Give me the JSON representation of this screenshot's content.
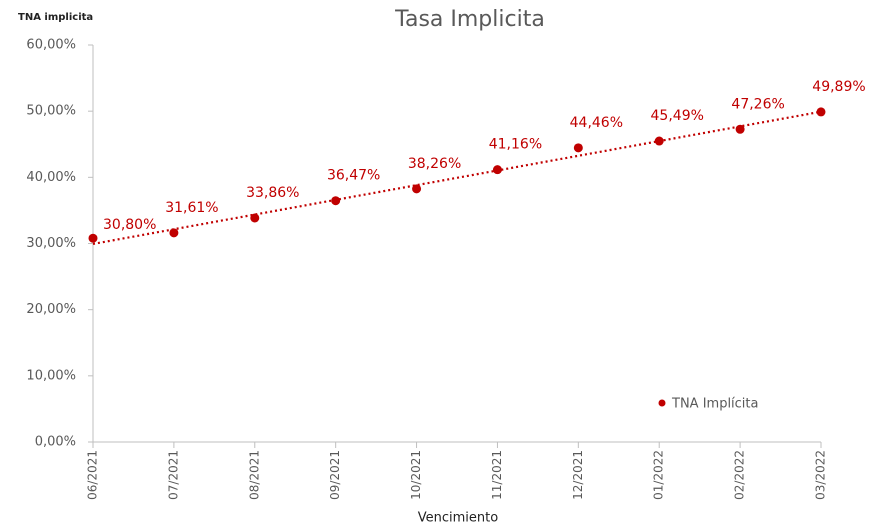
{
  "chart_data": {
    "type": "scatter",
    "title": "Tasa Implicita",
    "ylabel": "TNA implicita",
    "xlabel": "Vencimiento",
    "categories": [
      "06/2021",
      "07/2021",
      "08/2021",
      "09/2021",
      "10/2021",
      "11/2021",
      "12/2021",
      "01/2022",
      "02/2022",
      "03/2022"
    ],
    "series": [
      {
        "name": "TNA Implícita",
        "color": "#c00000",
        "values": [
          30.8,
          31.61,
          33.86,
          36.47,
          38.26,
          41.16,
          44.46,
          45.49,
          47.26,
          49.89
        ],
        "value_labels": [
          "30,80%",
          "31,61%",
          "33,86%",
          "36,47%",
          "38,26%",
          "41,16%",
          "44,46%",
          "45,49%",
          "47,26%",
          "49,89%"
        ]
      }
    ],
    "ylim": [
      0,
      60
    ],
    "yticks": [
      {
        "value": 0,
        "label": "0,00%"
      },
      {
        "value": 10,
        "label": "10,00%"
      },
      {
        "value": 20,
        "label": "20,00%"
      },
      {
        "value": 30,
        "label": "30,00%"
      },
      {
        "value": 40,
        "label": "40,00%"
      },
      {
        "value": 50,
        "label": "50,00%"
      },
      {
        "value": 60,
        "label": "60,00%"
      }
    ],
    "trendline": true,
    "legend": "bottom-right"
  }
}
